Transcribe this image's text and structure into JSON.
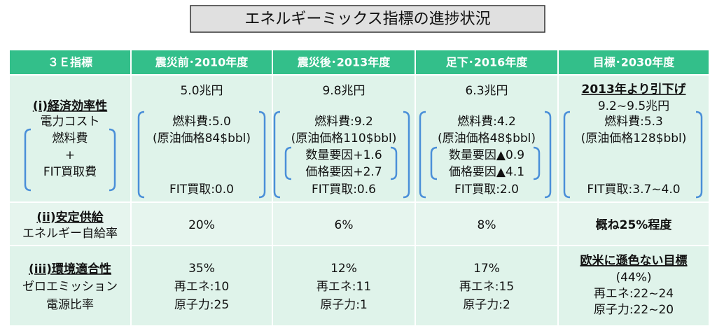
{
  "title": "エネルギーミックス指標の進捗状況",
  "table": {
    "header": [
      "３Ｅ指標",
      "震災前･2010年度",
      "震災後･2013年度",
      "足下･2016年度",
      "目標･2030年度"
    ],
    "rows": [
      {
        "label": [
          "(i)経済効率性",
          "電力コスト",
          "燃料費",
          "+",
          "FIT買取費"
        ],
        "cells": [
          [
            "5.0兆円",
            "燃料費:5.0",
            "(原油価格84$bbl)",
            "FIT買取:0.0"
          ],
          [
            "9.8兆円",
            "燃料費:9.2",
            "(原油価格110$bbl)",
            "数量要因+1.6",
            "価格要因+2.7",
            "FIT買取:0.6"
          ],
          [
            "6.3兆円",
            "燃料費:4.2",
            "(原油価格48$bbl)",
            "数量要因▲0.9",
            "価格要因▲4.1",
            "FIT買取:2.0"
          ],
          [
            "2013年より引下げ",
            "9.2~9.5兆円",
            "燃料費:5.3",
            "(原油価格128$bbl)",
            "FIT買取:3.7~4.0"
          ]
        ]
      },
      {
        "label": [
          "(ii)安定供給",
          "エネルギー自給率"
        ],
        "cells": [
          [
            "20%"
          ],
          [
            "6%"
          ],
          [
            "8%"
          ],
          [
            "概ね25%程度"
          ]
        ]
      },
      {
        "label": [
          "(iii)環境適合性",
          "ゼロエミッション",
          "電源比率"
        ],
        "cells": [
          [
            "35%",
            "再エネ:10",
            "原子力:25"
          ],
          [
            "12%",
            "再エネ:11",
            "原子力:1"
          ],
          [
            "17%",
            "再エネ:15",
            "原子力:2"
          ],
          [
            "欧米に遜色ない目標",
            "(44%)",
            "再エネ:22~24",
            "原子力:22~20"
          ]
        ]
      }
    ]
  }
}
